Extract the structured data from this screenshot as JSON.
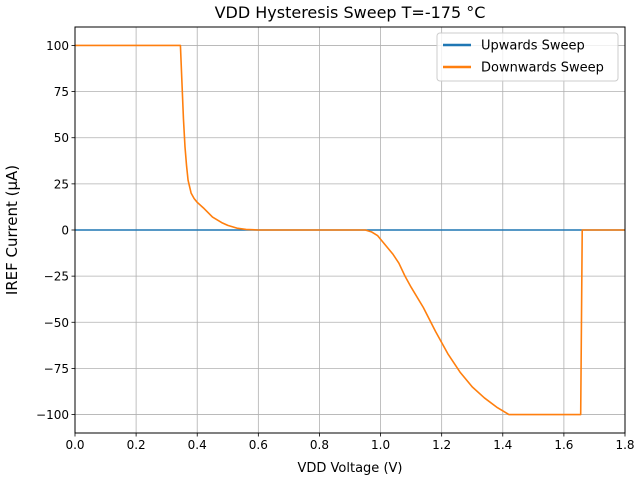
{
  "chart_data": {
    "type": "line",
    "title": "VDD Hysteresis Sweep T=-175 °C",
    "xlabel": "VDD Voltage (V)",
    "ylabel": "IREF Current (µA)",
    "xlim": [
      0,
      1.8
    ],
    "ylim": [
      -110,
      110
    ],
    "xticks": [
      0.0,
      0.2,
      0.4,
      0.6,
      0.8,
      1.0,
      1.2,
      1.4,
      1.6,
      1.8
    ],
    "xtick_labels": [
      "0.0",
      "0.2",
      "0.4",
      "0.6",
      "0.8",
      "1.0",
      "1.2",
      "1.4",
      "1.6",
      "1.8"
    ],
    "yticks": [
      100,
      75,
      50,
      25,
      0,
      -25,
      -50,
      -75,
      -100
    ],
    "ytick_labels": [
      "100",
      "75",
      "50",
      "25",
      "0",
      "−25",
      "−50",
      "−75",
      "−100"
    ],
    "grid": true,
    "legend_position": "top-right",
    "series": [
      {
        "name": "Upwards Sweep",
        "color": "#1f77b4",
        "x": [
          0.0,
          1.8
        ],
        "y": [
          0,
          0
        ]
      },
      {
        "name": "Downwards Sweep",
        "color": "#ff7f0e",
        "x": [
          0.0,
          0.345,
          0.35,
          0.355,
          0.36,
          0.365,
          0.37,
          0.38,
          0.39,
          0.4,
          0.42,
          0.45,
          0.48,
          0.5,
          0.53,
          0.56,
          0.6,
          0.7,
          0.8,
          0.9,
          0.95,
          0.97,
          0.99,
          1.0,
          1.02,
          1.04,
          1.06,
          1.08,
          1.1,
          1.14,
          1.18,
          1.22,
          1.26,
          1.3,
          1.34,
          1.38,
          1.41,
          1.42,
          1.5,
          1.6,
          1.655,
          1.66,
          1.7,
          1.8
        ],
        "y": [
          100,
          100,
          80,
          60,
          45,
          35,
          27,
          20,
          17,
          15,
          12,
          7,
          4,
          2.5,
          1,
          0.3,
          0,
          0,
          0,
          0,
          0,
          -1,
          -3,
          -5,
          -9,
          -13,
          -18,
          -25,
          -31,
          -42,
          -55,
          -67,
          -77,
          -85,
          -91,
          -96,
          -99,
          -100,
          -100,
          -100,
          -100,
          0,
          0,
          0
        ]
      }
    ]
  }
}
